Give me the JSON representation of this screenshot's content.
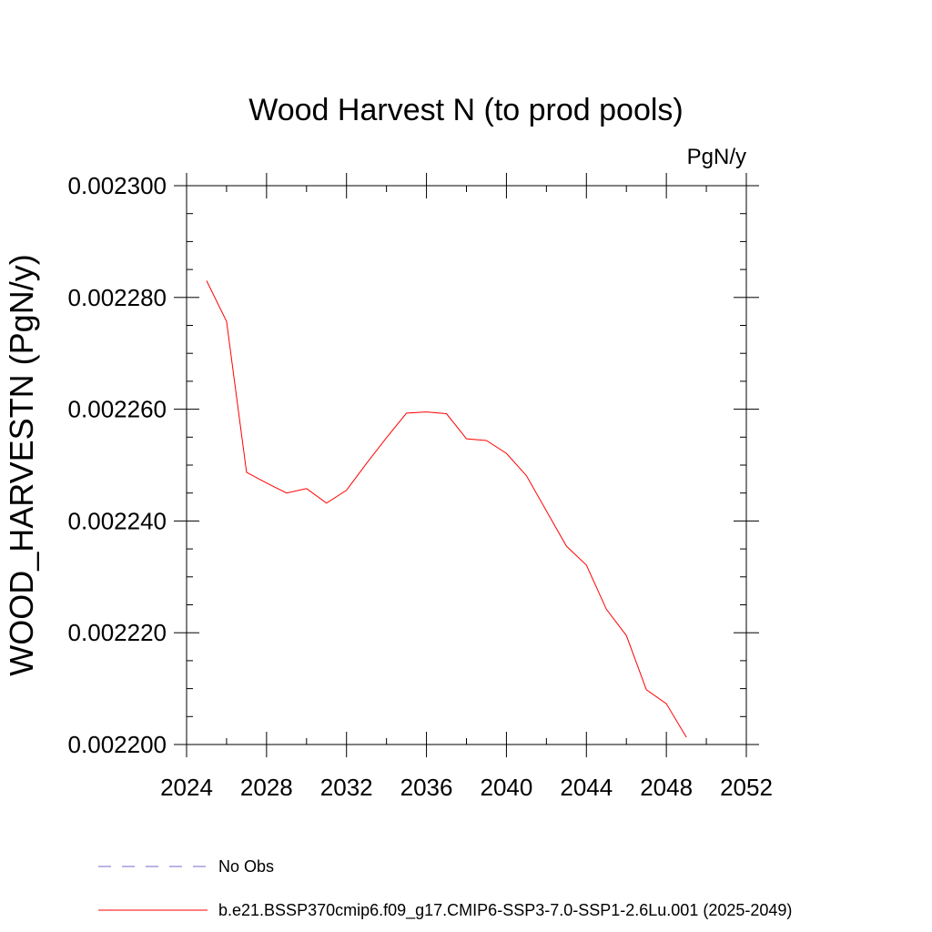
{
  "chart_data": {
    "type": "line",
    "title": "Wood Harvest N (to prod pools)",
    "units_label": "PgN/y",
    "xlabel": "",
    "ylabel": "WOOD_HARVESTN  (PgN/y)",
    "xlim": [
      2024,
      2052
    ],
    "ylim": [
      0.0022,
      0.0023
    ],
    "x_ticks": [
      2024,
      2028,
      2032,
      2036,
      2040,
      2044,
      2048,
      2052
    ],
    "x_tick_labels": [
      "2024",
      "2028",
      "2032",
      "2036",
      "2040",
      "2044",
      "2048",
      "2052"
    ],
    "y_ticks": [
      0.0022,
      0.00222,
      0.00224,
      0.00226,
      0.00228,
      0.0023
    ],
    "y_tick_labels": [
      "0.002200",
      "0.002220",
      "0.002240",
      "0.002260",
      "0.002280",
      "0.002300"
    ],
    "grid": false,
    "legend_position": "bottom",
    "series": [
      {
        "name": "b.e21.BSSP370cmip6.f09_g17.CMIP6-SSP3-7.0-SSP1-2.6Lu.001 (2025-2049)",
        "color": "#ff0000",
        "style": "solid",
        "x": [
          2025,
          2026,
          2027,
          2028,
          2029,
          2030,
          2031,
          2032,
          2033,
          2034,
          2035,
          2036,
          2037,
          2038,
          2039,
          2040,
          2041,
          2042,
          2043,
          2044,
          2045,
          2046,
          2047,
          2048,
          2049
        ],
        "y": [
          0.002283,
          0.0022757,
          0.0022487,
          0.0022468,
          0.002245,
          0.0022458,
          0.0022432,
          0.0022455,
          0.0022503,
          0.0022549,
          0.0022593,
          0.0022595,
          0.0022592,
          0.0022547,
          0.0022544,
          0.0022521,
          0.0022481,
          0.0022418,
          0.0022355,
          0.0022321,
          0.0022242,
          0.0022195,
          0.0022098,
          0.0022073,
          0.0022013
        ]
      }
    ],
    "legend": [
      {
        "label": "No Obs",
        "color": "#7b68c8",
        "style": "dashed"
      },
      {
        "label": "b.e21.BSSP370cmip6.f09_g17.CMIP6-SSP3-7.0-SSP1-2.6Lu.001 (2025-2049)",
        "color": "#ff0000",
        "style": "solid"
      }
    ]
  }
}
